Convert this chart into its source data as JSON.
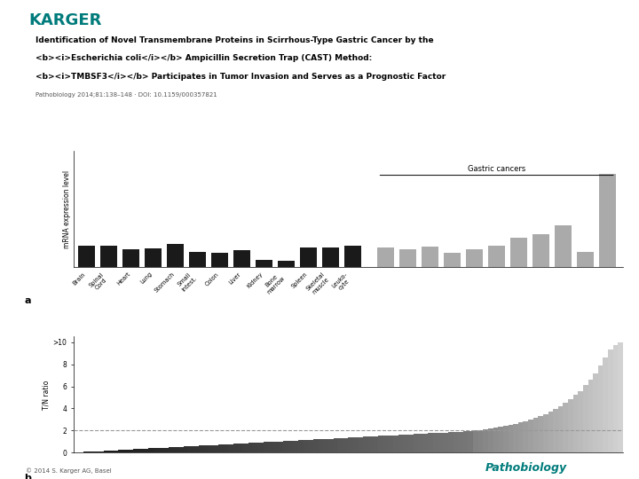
{
  "title_line1": "Identification of Novel Transmembrane Proteins in Scirrhous-Type Gastric Cancer by the",
  "title_line2": "<b><i>Escherichia coli</i></b> Ampicillin Secretion Trap (CAST) Method:",
  "title_line3": "<b><i>TMBSF3</i></b> Participates in Tumor Invasion and Serves as a Prognostic Factor",
  "subtitle": "Pathobiology 2014;81:138–148 · DOI: 10.1159/000357821",
  "karger_color": "#007B7B",
  "footer_left": "© 2014 S. Karger AG, Basel",
  "panel_a": {
    "label": "a",
    "ylabel": "mRNA expression level",
    "normal_tissues": [
      "Brain",
      "Spinal\nCord",
      "Heart",
      "Lung",
      "Stomach",
      "Small\nintest.",
      "Colon",
      "Liver",
      "Kidney",
      "Bone\nmarrow",
      "Spleen",
      "Skeletal\nmuscle",
      "Leuko-\ncyte"
    ],
    "normal_values": [
      1.8,
      1.85,
      1.5,
      1.6,
      1.95,
      1.3,
      1.25,
      1.45,
      0.6,
      0.55,
      1.7,
      1.7,
      1.85
    ],
    "gastric_label": "Gastric cancers",
    "gastric_values": [
      1.65,
      1.5,
      1.75,
      1.2,
      1.55,
      1.85,
      2.5,
      2.8,
      3.6,
      1.3,
      8.0
    ],
    "normal_color": "#1a1a1a",
    "gastric_color": "#aaaaaa",
    "bar_width": 0.75,
    "yticks": [],
    "ymax": 10.0
  },
  "panel_b": {
    "label": "b",
    "ylabel": "T/N ratio",
    "yticks": [
      0,
      2,
      4,
      6,
      8
    ],
    "ytick_top": ">10",
    "ymax": 10.5,
    "dashed_line_y": 2.0,
    "threshold_index": 80,
    "n_dark": 80,
    "n_light": 30
  },
  "background_color": "#ffffff"
}
